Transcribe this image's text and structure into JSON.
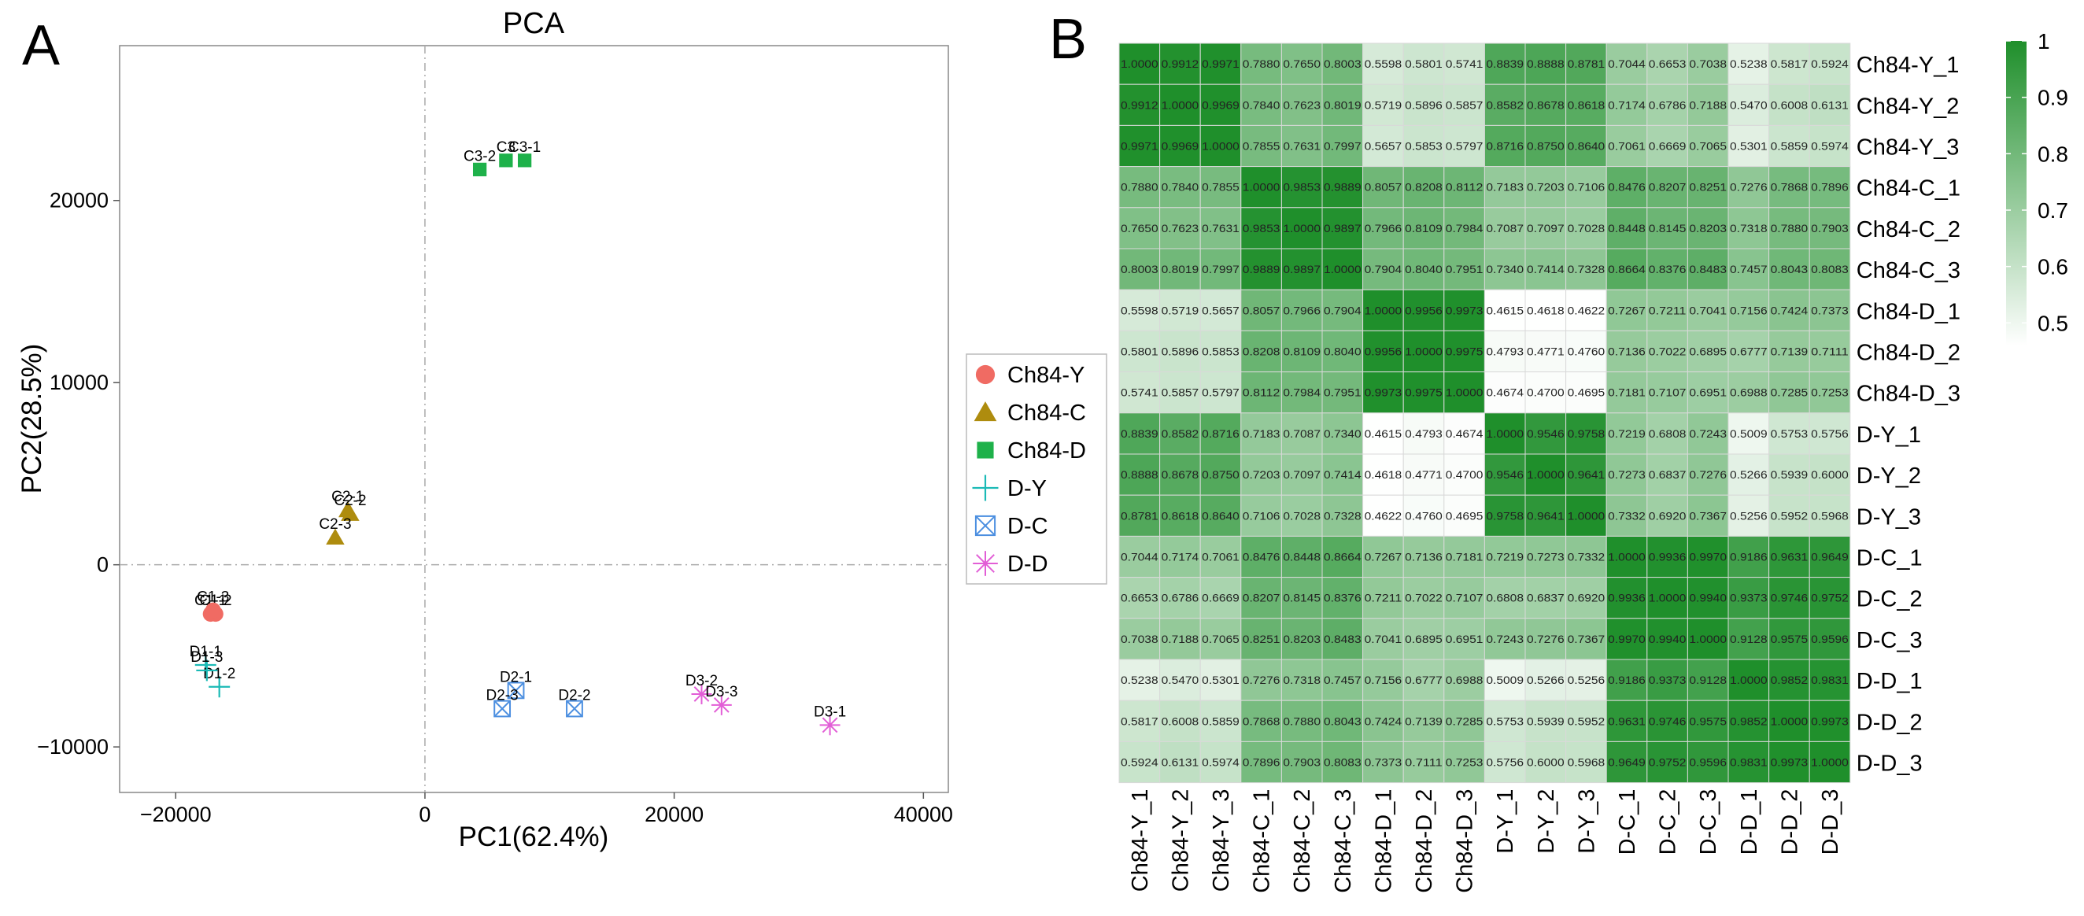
{
  "panel_labels": {
    "a": "A",
    "b": "B"
  },
  "chart_data": [
    {
      "type": "scatter",
      "title": "PCA",
      "xlabel": "PC1(62.4%)",
      "ylabel": "PC2(28.5%)",
      "xlim": [
        -24500,
        42000
      ],
      "ylim": [
        -12500,
        28500
      ],
      "xticks": [
        -20000,
        0,
        20000,
        40000
      ],
      "yticks": [
        -10000,
        0,
        10000,
        20000
      ],
      "xtick_labels": [
        "−20000",
        "0",
        "20000",
        "40000"
      ],
      "ytick_labels": [
        "−10000",
        "0",
        "10000",
        "20000"
      ],
      "reference_lines": {
        "x": 0,
        "y": 0,
        "style": "dash-dot"
      },
      "grid": false,
      "legend_position": "right",
      "series": [
        {
          "name": "Ch84-Y",
          "marker": "circle",
          "color": "#f06b63",
          "points": [
            {
              "label": "C1-1",
              "x": -17200,
              "y": -2700
            },
            {
              "label": "C1-2",
              "x": -16800,
              "y": -2700
            },
            {
              "label": "C1-3",
              "x": -17000,
              "y": -2500
            }
          ]
        },
        {
          "name": "Ch84-C",
          "marker": "triangle",
          "color": "#ae8c0e",
          "points": [
            {
              "label": "C2-1",
              "x": -6200,
              "y": 3000
            },
            {
              "label": "C2-2",
              "x": -6000,
              "y": 2800
            },
            {
              "label": "C2-3",
              "x": -7200,
              "y": 1500
            }
          ]
        },
        {
          "name": "Ch84-D",
          "marker": "square",
          "color": "#1eb14a",
          "points": [
            {
              "label": "C3-1",
              "x": 8000,
              "y": 22200
            },
            {
              "label": "C3-2",
              "x": 4400,
              "y": 21700
            },
            {
              "label": "C3",
              "x": 6500,
              "y": 22200
            }
          ]
        },
        {
          "name": "D-Y",
          "marker": "plus",
          "color": "#1bbab6",
          "points": [
            {
              "label": "D1-1",
              "x": -17600,
              "y": -5500
            },
            {
              "label": "D1-2",
              "x": -16500,
              "y": -6700
            },
            {
              "label": "D1-3",
              "x": -17500,
              "y": -5800
            }
          ]
        },
        {
          "name": "D-C",
          "marker": "boxx",
          "color": "#4c8fe0",
          "points": [
            {
              "label": "D2-1",
              "x": 7300,
              "y": -6900
            },
            {
              "label": "D2-2",
              "x": 12000,
              "y": -7900
            },
            {
              "label": "D2-3",
              "x": 6200,
              "y": -7900
            }
          ]
        },
        {
          "name": "D-D",
          "marker": "star",
          "color": "#e25ed6",
          "points": [
            {
              "label": "D3-1",
              "x": 32500,
              "y": -8800
            },
            {
              "label": "D3-2",
              "x": 22200,
              "y": -7100
            },
            {
              "label": "D3-3",
              "x": 23800,
              "y": -7700
            }
          ]
        }
      ]
    },
    {
      "type": "heatmap",
      "rows": [
        "Ch84-Y_1",
        "Ch84-Y_2",
        "Ch84-Y_3",
        "Ch84-C_1",
        "Ch84-C_2",
        "Ch84-C_3",
        "Ch84-D_1",
        "Ch84-D_2",
        "Ch84-D_3",
        "D-Y_1",
        "D-Y_2",
        "D-Y_3",
        "D-C_1",
        "D-C_2",
        "D-C_3",
        "D-D_1",
        "D-D_2",
        "D-D_3"
      ],
      "columns": [
        "Ch84-Y_1",
        "Ch84-Y_2",
        "Ch84-Y_3",
        "Ch84-C_1",
        "Ch84-C_2",
        "Ch84-C_3",
        "Ch84-D_1",
        "Ch84-D_2",
        "Ch84-D_3",
        "D-Y_1",
        "D-Y_2",
        "D-Y_3",
        "D-C_1",
        "D-C_2",
        "D-C_3",
        "D-D_1",
        "D-D_2",
        "D-D_3"
      ],
      "values": [
        [
          1.0,
          0.9912,
          0.9971,
          0.788,
          0.765,
          0.8003,
          0.5598,
          0.5801,
          0.5741,
          0.8839,
          0.8888,
          0.8781,
          0.7044,
          0.6653,
          0.7038,
          0.5238,
          0.5817,
          0.5924
        ],
        [
          0.9912,
          1.0,
          0.9969,
          0.784,
          0.7623,
          0.8019,
          0.5719,
          0.5896,
          0.5857,
          0.8582,
          0.8678,
          0.8618,
          0.7174,
          0.6786,
          0.7188,
          0.547,
          0.6008,
          0.6131
        ],
        [
          0.9971,
          0.9969,
          1.0,
          0.7855,
          0.7631,
          0.7997,
          0.5657,
          0.5853,
          0.5797,
          0.8716,
          0.875,
          0.864,
          0.7061,
          0.6669,
          0.7065,
          0.5301,
          0.5859,
          0.5974
        ],
        [
          0.788,
          0.784,
          0.7855,
          1.0,
          0.9853,
          0.9889,
          0.8057,
          0.8208,
          0.8112,
          0.7183,
          0.7203,
          0.7106,
          0.8476,
          0.8207,
          0.8251,
          0.7276,
          0.7868,
          0.7896
        ],
        [
          0.765,
          0.7623,
          0.7631,
          0.9853,
          1.0,
          0.9897,
          0.7966,
          0.8109,
          0.7984,
          0.7087,
          0.7097,
          0.7028,
          0.8448,
          0.8145,
          0.8203,
          0.7318,
          0.788,
          0.7903
        ],
        [
          0.8003,
          0.8019,
          0.7997,
          0.9889,
          0.9897,
          1.0,
          0.7904,
          0.804,
          0.7951,
          0.734,
          0.7414,
          0.7328,
          0.8664,
          0.8376,
          0.8483,
          0.7457,
          0.8043,
          0.8083
        ],
        [
          0.5598,
          0.5719,
          0.5657,
          0.8057,
          0.7966,
          0.7904,
          1.0,
          0.9956,
          0.9973,
          0.4615,
          0.4618,
          0.4622,
          0.7267,
          0.7211,
          0.7041,
          0.7156,
          0.7424,
          0.7373
        ],
        [
          0.5801,
          0.5896,
          0.5853,
          0.8208,
          0.8109,
          0.804,
          0.9956,
          1.0,
          0.9975,
          0.4793,
          0.4771,
          0.476,
          0.7136,
          0.7022,
          0.6895,
          0.6777,
          0.7139,
          0.7111
        ],
        [
          0.5741,
          0.5857,
          0.5797,
          0.8112,
          0.7984,
          0.7951,
          0.9973,
          0.9975,
          1.0,
          0.4674,
          0.47,
          0.4695,
          0.7181,
          0.7107,
          0.6951,
          0.6988,
          0.7285,
          0.7253
        ],
        [
          0.8839,
          0.8582,
          0.8716,
          0.7183,
          0.7087,
          0.734,
          0.4615,
          0.4793,
          0.4674,
          1.0,
          0.9546,
          0.9758,
          0.7219,
          0.6808,
          0.7243,
          0.5009,
          0.5753,
          0.5756
        ],
        [
          0.8888,
          0.8678,
          0.875,
          0.7203,
          0.7097,
          0.7414,
          0.4618,
          0.4771,
          0.47,
          0.9546,
          1.0,
          0.9641,
          0.7273,
          0.6837,
          0.7276,
          0.5266,
          0.5939,
          0.6
        ],
        [
          0.8781,
          0.8618,
          0.864,
          0.7106,
          0.7028,
          0.7328,
          0.4622,
          0.476,
          0.4695,
          0.9758,
          0.9641,
          1.0,
          0.7332,
          0.692,
          0.7367,
          0.5256,
          0.5952,
          0.5968
        ],
        [
          0.7044,
          0.7174,
          0.7061,
          0.8476,
          0.8448,
          0.8664,
          0.7267,
          0.7136,
          0.7181,
          0.7219,
          0.7273,
          0.7332,
          1.0,
          0.9936,
          0.997,
          0.9186,
          0.9631,
          0.9649
        ],
        [
          0.6653,
          0.6786,
          0.6669,
          0.8207,
          0.8145,
          0.8376,
          0.7211,
          0.7022,
          0.7107,
          0.6808,
          0.6837,
          0.692,
          0.9936,
          1.0,
          0.994,
          0.9373,
          0.9746,
          0.9752
        ],
        [
          0.7038,
          0.7188,
          0.7065,
          0.8251,
          0.8203,
          0.8483,
          0.7041,
          0.6895,
          0.6951,
          0.7243,
          0.7276,
          0.7367,
          0.997,
          0.994,
          1.0,
          0.9128,
          0.9575,
          0.9596
        ],
        [
          0.5238,
          0.547,
          0.5301,
          0.7276,
          0.7318,
          0.7457,
          0.7156,
          0.6777,
          0.6988,
          0.5009,
          0.5266,
          0.5256,
          0.9186,
          0.9373,
          0.9128,
          1.0,
          0.9852,
          0.9831
        ],
        [
          0.5817,
          0.6008,
          0.5859,
          0.7868,
          0.788,
          0.8043,
          0.7424,
          0.7139,
          0.7285,
          0.5753,
          0.5939,
          0.5952,
          0.9631,
          0.9746,
          0.9575,
          0.9852,
          1.0,
          0.9973
        ],
        [
          0.5924,
          0.6131,
          0.5974,
          0.7896,
          0.7903,
          0.8083,
          0.7373,
          0.7111,
          0.7253,
          0.5756,
          0.6,
          0.5968,
          0.9649,
          0.9752,
          0.9596,
          0.9831,
          0.9973,
          1.0
        ]
      ],
      "colorbar": {
        "min": 0.46,
        "max": 1.0,
        "ticks": [
          0.5,
          0.6,
          0.7,
          0.8,
          0.9,
          1.0
        ],
        "tick_labels": [
          "0.5",
          "0.6",
          "0.7",
          "0.8",
          "0.9",
          "1"
        ],
        "color_low": "#ffffff",
        "color_high": "#1f8f2b"
      },
      "cell_border_color": "#d9d9d9",
      "grid": false
    }
  ]
}
